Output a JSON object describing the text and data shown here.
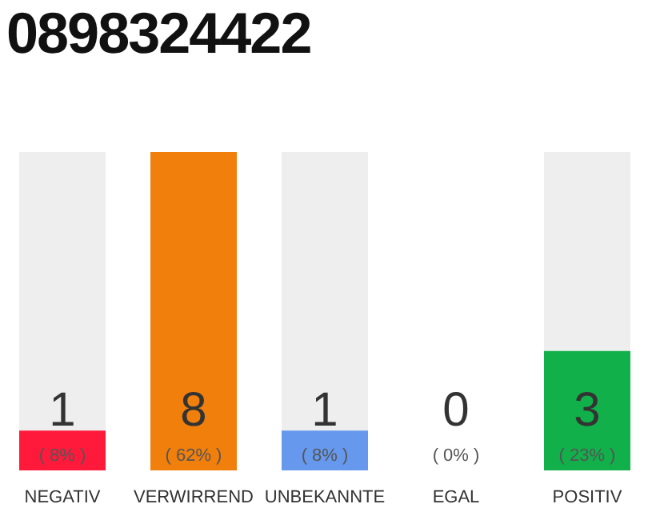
{
  "chart_data": {
    "type": "bar",
    "title": "0898324422",
    "categories": [
      "NEGATIV",
      "VERWIRREND",
      "UNBEKANNTE",
      "EGAL",
      "POSITIV"
    ],
    "values": [
      1,
      8,
      1,
      0,
      3
    ],
    "colors": [
      "#ff1a3c",
      "#f07f0c",
      "#6699ee",
      "#999999",
      "#11b04a"
    ],
    "ylim": [
      0,
      8
    ],
    "data_labels": true,
    "tick_labels": "x",
    "annotations": [
      "( 8% )",
      "( 62% )",
      "( 8% )",
      "( 0% )",
      "( 23% )"
    ]
  }
}
